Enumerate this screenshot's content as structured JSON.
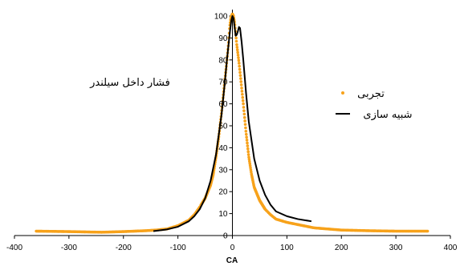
{
  "chart_data": {
    "type": "scatter",
    "title": "",
    "xlabel": "CA",
    "ylabel": "",
    "xlim": [
      -400,
      400
    ],
    "ylim": [
      0,
      100
    ],
    "x_ticks": [
      "-400",
      "-300",
      "-200",
      "-100",
      "0",
      "100",
      "200",
      "300",
      "400"
    ],
    "y_ticks": [
      "0",
      "10",
      "20",
      "30",
      "40",
      "50",
      "60",
      "70",
      "80",
      "90",
      "100"
    ],
    "grid": false,
    "legend_position": "right",
    "annotation": "فشار داخل سیلندر",
    "colors": {
      "experimental": "#F7A21B",
      "simulation": "#000000",
      "axis": "#000000"
    },
    "series": [
      {
        "name": "تجربی",
        "kind": "markers",
        "x": [
          -360,
          -300,
          -240,
          -200,
          -160,
          -140,
          -120,
          -100,
          -80,
          -70,
          -60,
          -50,
          -40,
          -35,
          -30,
          -25,
          -20,
          -15,
          -10,
          -7,
          -5,
          -3,
          -1,
          0,
          2,
          4,
          6,
          8,
          10,
          12,
          15,
          20,
          25,
          30,
          35,
          40,
          50,
          60,
          70,
          80,
          100,
          120,
          150,
          200,
          250,
          300,
          360
        ],
        "y": [
          2,
          1.8,
          1.5,
          1.8,
          2.2,
          2.5,
          3,
          4.5,
          7,
          9.5,
          13,
          17,
          23,
          28,
          36,
          45,
          56,
          68,
          80,
          88,
          95,
          99,
          100.5,
          101,
          100,
          97,
          92,
          87,
          83,
          79,
          72,
          60,
          47,
          36,
          28,
          22,
          16,
          12,
          9.5,
          7.5,
          6,
          5,
          3.5,
          2.5,
          2.2,
          2,
          2
        ]
      },
      {
        "name": "شبیه سازی",
        "kind": "line",
        "x": [
          -145,
          -120,
          -100,
          -80,
          -70,
          -60,
          -50,
          -40,
          -30,
          -20,
          -15,
          -10,
          -5,
          -2,
          0,
          2,
          4,
          6,
          8,
          10,
          12,
          14,
          17,
          20,
          25,
          30,
          40,
          50,
          60,
          70,
          80,
          100,
          120,
          145
        ],
        "y": [
          2,
          2.8,
          4,
          6.5,
          8.8,
          12,
          17,
          25,
          37,
          55,
          67,
          80,
          92,
          98,
          100,
          99,
          95,
          91,
          91.5,
          93,
          95,
          94.5,
          88,
          80,
          65,
          52,
          35,
          25,
          18.5,
          14,
          11,
          8.8,
          7.5,
          6.5
        ]
      }
    ]
  }
}
